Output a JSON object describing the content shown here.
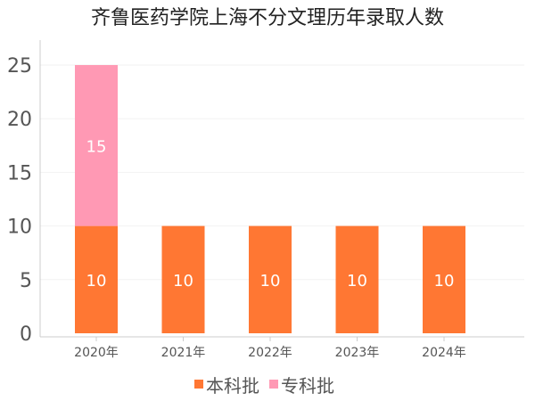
{
  "chart_data": {
    "type": "bar",
    "stacked": true,
    "title": "齐鲁医药学院上海不分文理历年录取人数",
    "categories": [
      "2020年",
      "2021年",
      "2022年",
      "2023年",
      "2024年"
    ],
    "series": [
      {
        "name": "本科批",
        "color": "#ff7733",
        "values": [
          10,
          10,
          10,
          10,
          10
        ]
      },
      {
        "name": "专科批",
        "color": "#ff99b4",
        "values": [
          15,
          0,
          0,
          0,
          0
        ]
      }
    ],
    "yticks": [
      0,
      5,
      10,
      15,
      20,
      25
    ],
    "ylim": [
      0,
      27.5
    ],
    "xlabel": "",
    "ylabel": "",
    "legend_position": "bottom"
  }
}
